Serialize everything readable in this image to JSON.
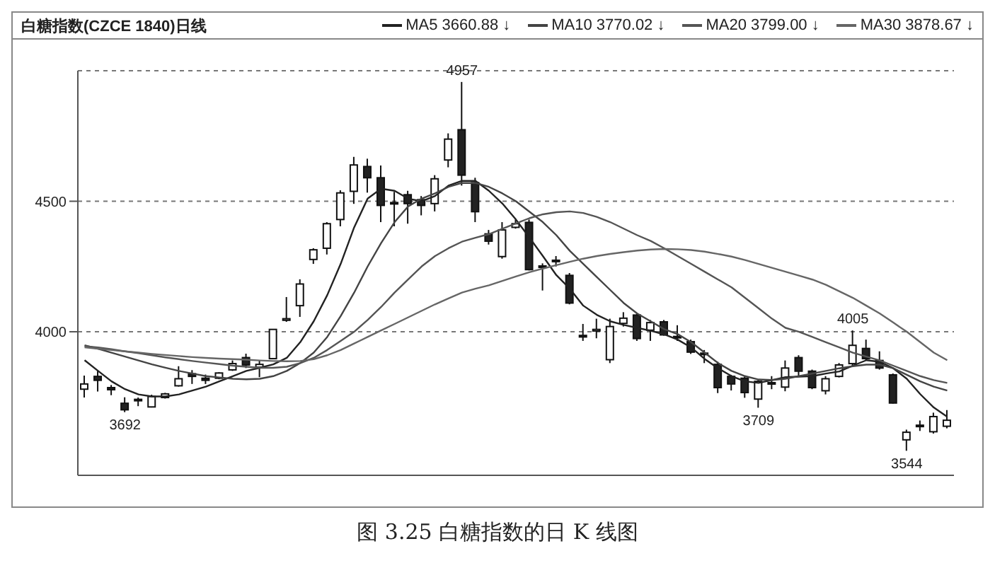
{
  "chart_data": {
    "type": "candlestick",
    "title": "白糖指数(CZCE 1840)日线",
    "categories": [
      null,
      null,
      null,
      null,
      null,
      null,
      null,
      null,
      null,
      null,
      null,
      null,
      null,
      null,
      null,
      null,
      null,
      null,
      null,
      null,
      null,
      null,
      null,
      null,
      null,
      null,
      null,
      null,
      null,
      null,
      null,
      null,
      null,
      null,
      null,
      null,
      null,
      null,
      null,
      null,
      null,
      null,
      null,
      null,
      null,
      null,
      null,
      null,
      null,
      null,
      null,
      null,
      null,
      null,
      null,
      null,
      null,
      null,
      null,
      null,
      null,
      null,
      null,
      null,
      null
    ],
    "ohlc": [
      [
        3780,
        3832,
        3748,
        3800
      ],
      [
        3829,
        3853,
        3771,
        3814
      ],
      [
        3786,
        3796,
        3757,
        3778
      ],
      [
        3726,
        3749,
        3692,
        3701
      ],
      [
        3741,
        3748,
        3715,
        3737
      ],
      [
        3712,
        3759,
        3710,
        3752
      ],
      [
        3748,
        3766,
        3744,
        3762
      ],
      [
        3793,
        3868,
        3790,
        3820
      ],
      [
        3839,
        3853,
        3800,
        3829
      ],
      [
        3822,
        3836,
        3800,
        3814
      ],
      [
        3822,
        3845,
        3818,
        3842
      ],
      [
        3854,
        3890,
        3850,
        3878
      ],
      [
        3901,
        3916,
        3861,
        3873
      ],
      [
        3864,
        3890,
        3826,
        3875
      ],
      [
        3897,
        4009,
        3895,
        4009
      ],
      [
        4044,
        4133,
        4038,
        4050
      ],
      [
        4100,
        4201,
        4057,
        4183
      ],
      [
        4277,
        4320,
        4260,
        4314
      ],
      [
        4320,
        4420,
        4296,
        4414
      ],
      [
        4430,
        4542,
        4404,
        4532
      ],
      [
        4538,
        4670,
        4490,
        4639
      ],
      [
        4633,
        4663,
        4533,
        4590
      ],
      [
        4590,
        4637,
        4420,
        4484
      ],
      [
        4491,
        4536,
        4404,
        4495
      ],
      [
        4525,
        4540,
        4414,
        4491
      ],
      [
        4506,
        4520,
        4446,
        4484
      ],
      [
        4491,
        4600,
        4461,
        4586
      ],
      [
        4658,
        4760,
        4630,
        4738
      ],
      [
        4774,
        4957,
        4560,
        4600
      ],
      [
        4571,
        4590,
        4420,
        4460
      ],
      [
        4375,
        4390,
        4334,
        4347
      ],
      [
        4288,
        4420,
        4280,
        4390
      ],
      [
        4400,
        4430,
        4395,
        4414
      ],
      [
        4419,
        4430,
        4235,
        4238
      ],
      [
        4252,
        4262,
        4158,
        4249
      ],
      [
        4270,
        4290,
        4250,
        4274
      ],
      [
        4216,
        4225,
        4105,
        4110
      ],
      [
        3986,
        4030,
        3965,
        3980
      ],
      [
        4003,
        4050,
        3975,
        4009
      ],
      [
        3893,
        4050,
        3880,
        4020
      ],
      [
        4032,
        4075,
        4020,
        4052
      ],
      [
        4064,
        4070,
        3965,
        3974
      ],
      [
        4006,
        4045,
        3965,
        4035
      ],
      [
        4038,
        4045,
        3985,
        3988
      ],
      [
        3982,
        4025,
        3965,
        3978
      ],
      [
        3962,
        3970,
        3915,
        3922
      ],
      [
        3918,
        3930,
        3880,
        3914
      ],
      [
        3875,
        3885,
        3765,
        3786
      ],
      [
        3829,
        3835,
        3775,
        3800
      ],
      [
        3822,
        3830,
        3747,
        3767
      ],
      [
        3742,
        3815,
        3709,
        3810
      ],
      [
        3800,
        3830,
        3780,
        3805
      ],
      [
        3788,
        3890,
        3772,
        3861
      ],
      [
        3901,
        3910,
        3830,
        3849
      ],
      [
        3849,
        3855,
        3780,
        3786
      ],
      [
        3774,
        3830,
        3760,
        3820
      ],
      [
        3829,
        3880,
        3825,
        3873
      ],
      [
        3878,
        4005,
        3870,
        3948
      ],
      [
        3936,
        3970,
        3890,
        3897
      ],
      [
        3890,
        3925,
        3855,
        3861
      ],
      [
        3835,
        3840,
        3725,
        3727
      ],
      [
        3586,
        3625,
        3544,
        3615
      ],
      [
        3638,
        3660,
        3620,
        3642
      ],
      [
        3617,
        3690,
        3610,
        3675
      ],
      [
        3638,
        3700,
        3630,
        3661
      ]
    ],
    "series": [
      {
        "name": "MA5 3660.88 ↓",
        "type": "line",
        "color": "#222222",
        "values": [
          3891,
          3850,
          3810,
          3780,
          3760,
          3752,
          3752,
          3760,
          3775,
          3790,
          3810,
          3830,
          3850,
          3862,
          3875,
          3900,
          3960,
          4040,
          4140,
          4260,
          4400,
          4510,
          4548,
          4540,
          4510,
          4500,
          4520,
          4560,
          4578,
          4578,
          4540,
          4491,
          4430,
          4361,
          4290,
          4217,
          4165,
          4100,
          4065,
          4040,
          4026,
          4015,
          4004,
          3990,
          3970,
          3940,
          3896,
          3860,
          3830,
          3810,
          3804,
          3815,
          3826,
          3828,
          3830,
          3840,
          3848,
          3870,
          3891,
          3885,
          3860,
          3820,
          3761,
          3710,
          3674
        ]
      },
      {
        "name": "MA10 3770.02 ↓",
        "type": "line",
        "color": "#444444",
        "values": [
          3948,
          3935,
          3920,
          3905,
          3890,
          3875,
          3862,
          3850,
          3840,
          3830,
          3825,
          3820,
          3818,
          3820,
          3830,
          3850,
          3880,
          3920,
          3980,
          4060,
          4150,
          4250,
          4340,
          4420,
          4480,
          4510,
          4530,
          4555,
          4570,
          4570,
          4555,
          4530,
          4500,
          4460,
          4420,
          4370,
          4310,
          4260,
          4210,
          4160,
          4110,
          4070,
          4040,
          4010,
          3991,
          3960,
          3920,
          3880,
          3850,
          3830,
          3817,
          3815,
          3820,
          3830,
          3840,
          3850,
          3860,
          3868,
          3874,
          3874,
          3860,
          3835,
          3810,
          3790,
          3775
        ]
      },
      {
        "name": "MA20 3799.00 ↓",
        "type": "line",
        "color": "#555555",
        "values": [
          3945,
          3940,
          3933,
          3925,
          3918,
          3910,
          3902,
          3895,
          3888,
          3882,
          3876,
          3870,
          3866,
          3862,
          3862,
          3866,
          3880,
          3900,
          3930,
          3965,
          4000,
          4045,
          4095,
          4150,
          4200,
          4250,
          4290,
          4320,
          4345,
          4360,
          4374,
          4395,
          4415,
          4435,
          4450,
          4458,
          4461,
          4455,
          4440,
          4420,
          4395,
          4370,
          4348,
          4320,
          4290,
          4260,
          4230,
          4200,
          4170,
          4130,
          4090,
          4050,
          4015,
          4000,
          3980,
          3960,
          3940,
          3920,
          3905,
          3890,
          3870,
          3850,
          3830,
          3815,
          3804
        ]
      },
      {
        "name": "MA30 3878.67 ↓",
        "type": "line",
        "color": "#666666",
        "values": [
          3940,
          3935,
          3930,
          3925,
          3920,
          3915,
          3911,
          3907,
          3903,
          3900,
          3897,
          3895,
          3893,
          3890,
          3888,
          3887,
          3888,
          3895,
          3910,
          3930,
          3955,
          3980,
          4005,
          4030,
          4055,
          4080,
          4105,
          4128,
          4150,
          4165,
          4178,
          4195,
          4212,
          4228,
          4242,
          4255,
          4268,
          4280,
          4290,
          4298,
          4305,
          4311,
          4315,
          4317,
          4316,
          4313,
          4307,
          4298,
          4288,
          4275,
          4260,
          4245,
          4230,
          4215,
          4200,
          4180,
          4155,
          4130,
          4100,
          4070,
          4035,
          4000,
          3960,
          3920,
          3891
        ]
      }
    ],
    "ylim": [
      3450,
      5000
    ],
    "yticks": [
      4000,
      4500
    ],
    "grid": "y",
    "legend": "top right",
    "marker": "none",
    "line_style": "solid",
    "annotations": [
      {
        "text": "4957",
        "y": 4957
      },
      {
        "text": "3692",
        "y": 3692
      },
      {
        "text": "3709",
        "y": 3709
      },
      {
        "text": "4005",
        "y": 4005
      },
      {
        "text": "3544",
        "y": 3544
      },
      "图 3.25 白糖指数的日 K 线图"
    ]
  }
}
